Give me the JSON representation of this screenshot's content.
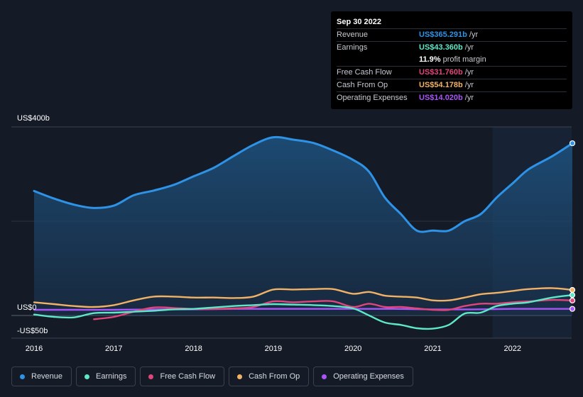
{
  "chart_data": {
    "type": "line",
    "title": "",
    "xlabel": "",
    "ylabel": "",
    "ylim": [
      -50,
      400
    ],
    "y_tick_labels": [
      {
        "value": 400,
        "label": "US$400b"
      },
      {
        "value": 0,
        "label": "US$0"
      },
      {
        "value": -50,
        "label": "-US$50b"
      }
    ],
    "x_ticks": [
      {
        "value": 2016,
        "label": "2016"
      },
      {
        "value": 2017,
        "label": "2017"
      },
      {
        "value": 2018,
        "label": "2018"
      },
      {
        "value": 2019,
        "label": "2019"
      },
      {
        "value": 2020,
        "label": "2020"
      },
      {
        "value": 2021,
        "label": "2021"
      },
      {
        "value": 2022,
        "label": "2022"
      }
    ],
    "xlim": [
      2015.7,
      2022.75
    ],
    "highlight_start": 2021.75,
    "series": [
      {
        "name": "Revenue",
        "color": "#2e93e6",
        "area": true,
        "points": [
          [
            2016.0,
            264
          ],
          [
            2016.25,
            248
          ],
          [
            2016.5,
            235
          ],
          [
            2016.75,
            228
          ],
          [
            2017.0,
            233
          ],
          [
            2017.25,
            255
          ],
          [
            2017.5,
            265
          ],
          [
            2017.75,
            277
          ],
          [
            2018.0,
            295
          ],
          [
            2018.25,
            313
          ],
          [
            2018.5,
            338
          ],
          [
            2018.75,
            362
          ],
          [
            2019.0,
            378
          ],
          [
            2019.25,
            373
          ],
          [
            2019.5,
            366
          ],
          [
            2019.75,
            350
          ],
          [
            2020.0,
            330
          ],
          [
            2020.2,
            305
          ],
          [
            2020.4,
            250
          ],
          [
            2020.6,
            215
          ],
          [
            2020.8,
            180
          ],
          [
            2021.0,
            180
          ],
          [
            2021.2,
            180
          ],
          [
            2021.4,
            200
          ],
          [
            2021.6,
            215
          ],
          [
            2021.8,
            250
          ],
          [
            2022.0,
            280
          ],
          [
            2022.2,
            310
          ],
          [
            2022.5,
            338
          ],
          [
            2022.75,
            365.291
          ]
        ]
      },
      {
        "name": "Earnings",
        "color": "#5fe8c8",
        "points": [
          [
            2016.0,
            2
          ],
          [
            2016.25,
            -3
          ],
          [
            2016.5,
            -4
          ],
          [
            2016.75,
            5
          ],
          [
            2017.0,
            6
          ],
          [
            2017.25,
            8
          ],
          [
            2017.5,
            10
          ],
          [
            2017.75,
            13
          ],
          [
            2018.0,
            14
          ],
          [
            2018.25,
            17
          ],
          [
            2018.5,
            20
          ],
          [
            2018.75,
            22
          ],
          [
            2019.0,
            24
          ],
          [
            2019.25,
            23
          ],
          [
            2019.5,
            22
          ],
          [
            2019.75,
            20
          ],
          [
            2020.0,
            15
          ],
          [
            2020.2,
            0
          ],
          [
            2020.4,
            -15
          ],
          [
            2020.6,
            -20
          ],
          [
            2020.8,
            -27
          ],
          [
            2021.0,
            -28
          ],
          [
            2021.2,
            -20
          ],
          [
            2021.4,
            4
          ],
          [
            2021.6,
            6
          ],
          [
            2021.8,
            20
          ],
          [
            2022.0,
            25
          ],
          [
            2022.2,
            28
          ],
          [
            2022.5,
            38
          ],
          [
            2022.75,
            43.36
          ]
        ]
      },
      {
        "name": "Free Cash Flow",
        "color": "#e0457b",
        "points": [
          [
            2016.75,
            -8
          ],
          [
            2017.0,
            -3
          ],
          [
            2017.25,
            8
          ],
          [
            2017.5,
            17
          ],
          [
            2017.75,
            16
          ],
          [
            2018.0,
            14
          ],
          [
            2018.25,
            14
          ],
          [
            2018.5,
            15
          ],
          [
            2018.75,
            18
          ],
          [
            2019.0,
            30
          ],
          [
            2019.25,
            28
          ],
          [
            2019.5,
            30
          ],
          [
            2019.75,
            30
          ],
          [
            2020.0,
            18
          ],
          [
            2020.2,
            25
          ],
          [
            2020.4,
            18
          ],
          [
            2020.6,
            18
          ],
          [
            2020.8,
            15
          ],
          [
            2021.0,
            12
          ],
          [
            2021.2,
            12
          ],
          [
            2021.4,
            20
          ],
          [
            2021.6,
            25
          ],
          [
            2021.8,
            25
          ],
          [
            2022.0,
            28
          ],
          [
            2022.2,
            30
          ],
          [
            2022.5,
            33
          ],
          [
            2022.75,
            31.76
          ]
        ]
      },
      {
        "name": "Cash From Op",
        "color": "#f2b266",
        "points": [
          [
            2016.0,
            28
          ],
          [
            2016.25,
            24
          ],
          [
            2016.5,
            20
          ],
          [
            2016.75,
            18
          ],
          [
            2017.0,
            22
          ],
          [
            2017.25,
            32
          ],
          [
            2017.5,
            40
          ],
          [
            2017.75,
            40
          ],
          [
            2018.0,
            38
          ],
          [
            2018.25,
            38
          ],
          [
            2018.5,
            37
          ],
          [
            2018.75,
            40
          ],
          [
            2019.0,
            55
          ],
          [
            2019.25,
            55
          ],
          [
            2019.5,
            56
          ],
          [
            2019.75,
            56
          ],
          [
            2020.0,
            46
          ],
          [
            2020.2,
            50
          ],
          [
            2020.4,
            42
          ],
          [
            2020.6,
            40
          ],
          [
            2020.8,
            38
          ],
          [
            2021.0,
            32
          ],
          [
            2021.2,
            32
          ],
          [
            2021.4,
            38
          ],
          [
            2021.6,
            45
          ],
          [
            2021.8,
            48
          ],
          [
            2022.0,
            52
          ],
          [
            2022.2,
            56
          ],
          [
            2022.5,
            58
          ],
          [
            2022.75,
            54.178
          ]
        ]
      },
      {
        "name": "Operating Expenses",
        "color": "#a855f7",
        "points": [
          [
            2016.0,
            12
          ],
          [
            2016.5,
            12
          ],
          [
            2017.0,
            12
          ],
          [
            2017.5,
            13
          ],
          [
            2018.0,
            13
          ],
          [
            2018.5,
            14
          ],
          [
            2019.0,
            14
          ],
          [
            2019.5,
            14
          ],
          [
            2020.0,
            14
          ],
          [
            2020.5,
            14
          ],
          [
            2021.0,
            13
          ],
          [
            2021.5,
            13
          ],
          [
            2022.0,
            14
          ],
          [
            2022.5,
            14
          ],
          [
            2022.75,
            14.02
          ]
        ]
      }
    ]
  },
  "tooltip": {
    "date": "Sep 30 2022",
    "rows": [
      {
        "label": "Revenue",
        "value": "US$365.291b",
        "unit": "/yr",
        "color": "#2e93e6"
      },
      {
        "label": "Earnings",
        "value": "US$43.360b",
        "unit": "/yr",
        "color": "#5fe8c8"
      },
      {
        "label": "",
        "value": "11.9%",
        "unit": "profit margin",
        "color": "#ffffff"
      },
      {
        "label": "Free Cash Flow",
        "value": "US$31.760b",
        "unit": "/yr",
        "color": "#e0457b"
      },
      {
        "label": "Cash From Op",
        "value": "US$54.178b",
        "unit": "/yr",
        "color": "#f2b266"
      },
      {
        "label": "Operating Expenses",
        "value": "US$14.020b",
        "unit": "/yr",
        "color": "#a855f7"
      }
    ]
  },
  "legend": [
    {
      "label": "Revenue",
      "color": "#2e93e6"
    },
    {
      "label": "Earnings",
      "color": "#5fe8c8"
    },
    {
      "label": "Free Cash Flow",
      "color": "#e0457b"
    },
    {
      "label": "Cash From Op",
      "color": "#f2b266"
    },
    {
      "label": "Operating Expenses",
      "color": "#a855f7"
    }
  ]
}
